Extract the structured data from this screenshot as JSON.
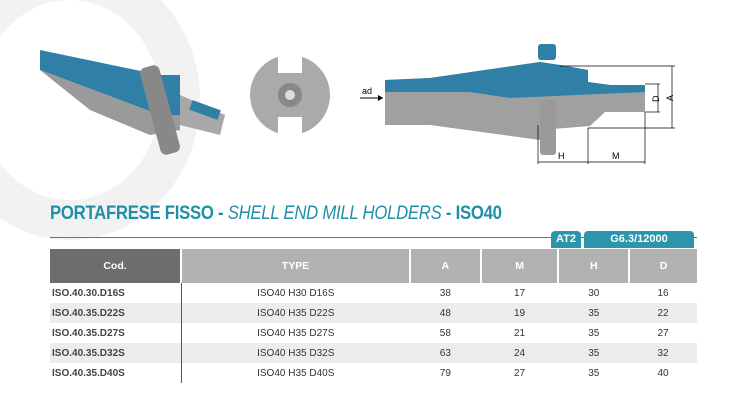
{
  "drawing": {
    "label_ad": "ad",
    "label_H": "H",
    "label_M": "M",
    "label_D": "D",
    "label_A": "A"
  },
  "title": {
    "main": "PORTAFRESE FISSO",
    "sep1": " - ",
    "italic": "SHELL END MILL HOLDERS",
    "sep2": " - ",
    "code": "ISO40"
  },
  "badges": [
    "AT2",
    "G6.3/12000"
  ],
  "colors": {
    "accent": "#1f8fa8",
    "tool_blue": "#2f7fa6",
    "header_dark": "#6e6d6e",
    "header_light": "#b2b2b2"
  },
  "table": {
    "headers": [
      "Cod.",
      "TYPE",
      "A",
      "M",
      "H",
      "D"
    ],
    "rows": [
      [
        "ISO.40.30.D16S",
        "ISO40 H30 D16S",
        "38",
        "17",
        "30",
        "16"
      ],
      [
        "ISO.40.35.D22S",
        "ISO40 H35 D22S",
        "48",
        "19",
        "35",
        "22"
      ],
      [
        "ISO.40.35.D27S",
        "ISO40 H35 D27S",
        "58",
        "21",
        "35",
        "27"
      ],
      [
        "ISO.40.35.D32S",
        "ISO40 H35 D32S",
        "63",
        "24",
        "35",
        "32"
      ],
      [
        "ISO.40.35.D40S",
        "ISO40 H35 D40S",
        "79",
        "27",
        "35",
        "40"
      ]
    ]
  }
}
